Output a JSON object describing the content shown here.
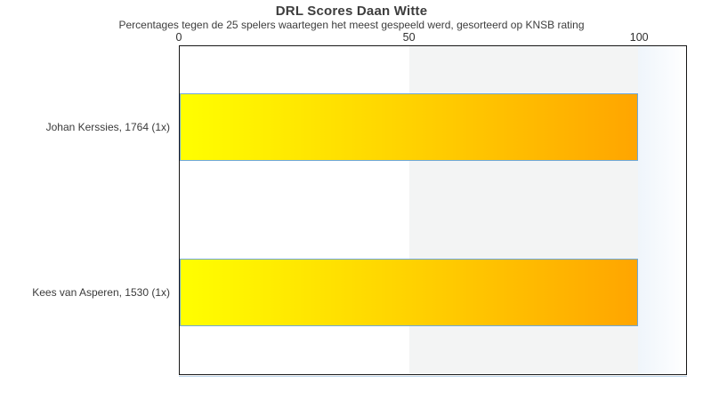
{
  "chart_data": {
    "type": "bar",
    "orientation": "horizontal",
    "title": "DRL Scores Daan Witte",
    "subtitle": "Percentages tegen de 25 spelers waartegen het meest gespeeld werd, gesorteerd op KNSB rating",
    "categories": [
      "Johan Kerssies, 1764 (1x)",
      "Kees van Asperen, 1530 (1x)"
    ],
    "values": [
      100,
      100
    ],
    "xticks": [
      "0",
      "50",
      "100"
    ],
    "xlim": [
      0,
      110.4
    ],
    "xlabel": "",
    "ylabel": "",
    "grid": false,
    "legend": "none",
    "shaded_band_range": [
      50,
      100
    ]
  },
  "colors": {
    "bar_gradient_start": "#ffff00",
    "bar_gradient_end": "#ffa500",
    "bar_border": "#6fa8d8",
    "band_gray": "#f3f4f4",
    "band_fade_start": "#eff5fb",
    "plot_border": "#161616",
    "text": "#3d3d3d"
  }
}
